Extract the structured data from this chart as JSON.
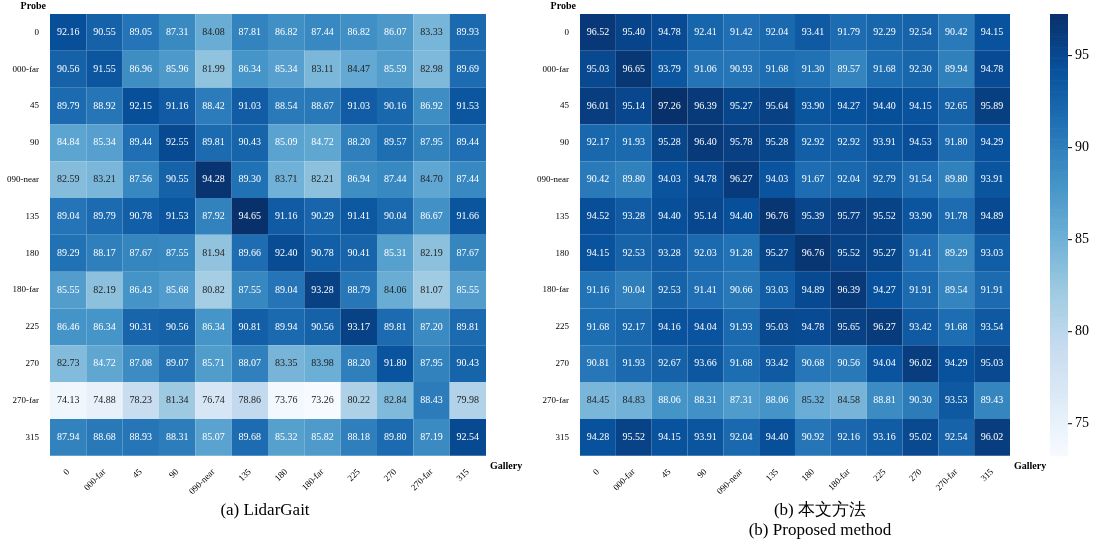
{
  "chart_data": [
    {
      "type": "heatmap",
      "title": "(a) LidarGait",
      "xlabel": "Gallery",
      "ylabel": "Probe",
      "data_labels": true,
      "categories": [
        "0",
        "000-far",
        "45",
        "90",
        "090-near",
        "135",
        "180",
        "180-far",
        "225",
        "270",
        "270-far",
        "315"
      ],
      "y_categories": [
        "0",
        "000-far",
        "45",
        "90",
        "090-near",
        "135",
        "180",
        "180-far",
        "225",
        "270",
        "270-far",
        "315"
      ],
      "cells": [
        [
          92.16,
          90.55,
          89.05,
          87.31,
          84.08,
          87.81,
          86.82,
          87.44,
          86.82,
          86.07,
          83.33,
          89.93
        ],
        [
          90.56,
          91.55,
          86.96,
          85.96,
          81.99,
          86.34,
          85.34,
          83.11,
          84.47,
          85.59,
          82.98,
          89.69
        ],
        [
          89.79,
          88.92,
          92.15,
          91.16,
          88.42,
          91.03,
          88.54,
          88.67,
          91.03,
          90.16,
          86.92,
          91.53
        ],
        [
          84.84,
          85.34,
          89.44,
          92.55,
          89.81,
          90.43,
          85.09,
          84.72,
          88.2,
          89.57,
          87.95,
          89.44
        ],
        [
          82.59,
          83.21,
          87.56,
          90.55,
          94.28,
          89.3,
          83.71,
          82.21,
          86.94,
          87.44,
          84.7,
          87.44
        ],
        [
          89.04,
          89.79,
          90.78,
          91.53,
          87.92,
          94.65,
          91.16,
          90.29,
          91.41,
          90.04,
          86.67,
          91.66
        ],
        [
          89.29,
          88.17,
          87.67,
          87.55,
          81.94,
          89.66,
          92.4,
          90.78,
          90.41,
          85.31,
          82.19,
          87.67
        ],
        [
          85.55,
          82.19,
          86.43,
          85.68,
          80.82,
          87.55,
          89.04,
          93.28,
          88.79,
          84.06,
          81.07,
          85.55
        ],
        [
          86.46,
          86.34,
          90.31,
          90.56,
          86.34,
          90.81,
          89.94,
          90.56,
          93.17,
          89.81,
          87.2,
          89.81
        ],
        [
          82.73,
          84.72,
          87.08,
          89.07,
          85.71,
          88.07,
          83.35,
          83.98,
          88.2,
          91.8,
          87.95,
          90.43
        ],
        [
          74.13,
          74.88,
          78.23,
          81.34,
          76.74,
          78.86,
          73.76,
          73.26,
          80.22,
          82.84,
          88.43,
          79.98
        ],
        [
          87.94,
          88.68,
          88.93,
          88.31,
          85.07,
          89.68,
          85.32,
          85.82,
          88.18,
          89.8,
          87.19,
          92.54
        ]
      ],
      "cell_labels": [
        [
          "92.16",
          "90.55",
          "89.05",
          "87.31",
          "84.08",
          "87.81",
          "86.82",
          "87.44",
          "86.82",
          "86.07",
          "83.33",
          "89.93"
        ],
        [
          "90.56",
          "91.55",
          "86.96",
          "85.96",
          "81.99",
          "86.34",
          "85.34",
          "83.11",
          "84.47",
          "85.59",
          "82.98",
          "89.69"
        ],
        [
          "89.79",
          "88.92",
          "92.15",
          "91.16",
          "88.42",
          "91.03",
          "88.54",
          "88.67",
          "91.03",
          "90.16",
          "86.92",
          "91.53"
        ],
        [
          "84.84",
          "85.34",
          "89.44",
          "92.55",
          "89.81",
          "90.43",
          "85.09",
          "84.72",
          "88.20",
          "89.57",
          "87.95",
          "89.44"
        ],
        [
          "82.59",
          "83.21",
          "87.56",
          "90.55",
          "94.28",
          "89.30",
          "83.71",
          "82.21",
          "86.94",
          "87.44",
          "84.70",
          "87.44"
        ],
        [
          "89.04",
          "89.79",
          "90.78",
          "91.53",
          "87.92",
          "94.65",
          "91.16",
          "90.29",
          "91.41",
          "90.04",
          "86.67",
          "91.66"
        ],
        [
          "89.29",
          "88.17",
          "87.67",
          "87.55",
          "81.94",
          "89.66",
          "92.40",
          "90.78",
          "90.41",
          "85.31",
          "82.19",
          "87.67"
        ],
        [
          "85.55",
          "82.19",
          "86.43",
          "85.68",
          "80.82",
          "87.55",
          "89.04",
          "93.28",
          "88.79",
          "84.06",
          "81.07",
          "85.55"
        ],
        [
          "86.46",
          "86.34",
          "90.31",
          "90.56",
          "86.34",
          "90.81",
          "89.94",
          "90.56",
          "93.17",
          "89.81",
          "87.20",
          "89.81"
        ],
        [
          "82.73",
          "84.72",
          "87.08",
          "89.07",
          "85.71",
          "88.07",
          "83.35",
          "83.98",
          "88.20",
          "91.80",
          "87.95",
          "90.43"
        ],
        [
          "74.13",
          "74.88",
          "78.23",
          "81.34",
          "76.74",
          "78.86",
          "73.76",
          "73.26",
          "80.22",
          "82.84",
          "88.43",
          "79.98"
        ],
        [
          "87.94",
          "88.68",
          "88.93",
          "88.31",
          "85.07",
          "89.68",
          "85.32",
          "85.82",
          "88.18",
          "89.80",
          "87.19",
          "92.54"
        ]
      ]
    },
    {
      "type": "heatmap",
      "title": "(b) 本文方法",
      "subtitle": "(b) Proposed method",
      "xlabel": "Gallery",
      "ylabel": "Probe",
      "data_labels": true,
      "categories": [
        "0",
        "000-far",
        "45",
        "90",
        "090-near",
        "135",
        "180",
        "180-far",
        "225",
        "270",
        "270-far",
        "315"
      ],
      "y_categories": [
        "0",
        "000-far",
        "45",
        "90",
        "090-near",
        "135",
        "180",
        "180-far",
        "225",
        "270",
        "270-far",
        "315"
      ],
      "clim": [
        73.26,
        97.26
      ],
      "cticks": [
        75,
        80,
        85,
        90,
        95
      ],
      "cells": [
        [
          96.52,
          95.4,
          94.78,
          92.41,
          91.42,
          92.04,
          93.41,
          91.79,
          92.29,
          92.54,
          90.42,
          94.15
        ],
        [
          95.03,
          96.65,
          93.79,
          91.06,
          90.93,
          91.68,
          91.3,
          89.57,
          91.68,
          92.3,
          89.94,
          94.78
        ],
        [
          96.01,
          95.14,
          97.26,
          96.39,
          95.27,
          95.64,
          93.9,
          94.27,
          94.4,
          94.15,
          92.65,
          95.89
        ],
        [
          92.17,
          91.93,
          95.28,
          96.4,
          95.78,
          95.28,
          92.92,
          92.92,
          93.91,
          94.53,
          91.8,
          94.29
        ],
        [
          90.42,
          89.8,
          94.03,
          94.78,
          96.27,
          94.03,
          91.67,
          92.04,
          92.79,
          91.54,
          89.8,
          93.91
        ],
        [
          94.52,
          93.28,
          94.4,
          95.14,
          94.4,
          96.76,
          95.39,
          95.77,
          95.52,
          93.9,
          91.78,
          94.89
        ],
        [
          94.15,
          92.53,
          93.28,
          92.03,
          91.28,
          95.27,
          96.76,
          95.52,
          95.27,
          91.41,
          89.29,
          93.03
        ],
        [
          91.16,
          90.04,
          92.53,
          91.41,
          90.66,
          93.03,
          94.89,
          96.39,
          94.27,
          91.91,
          89.54,
          91.91
        ],
        [
          91.68,
          92.17,
          94.16,
          94.04,
          91.93,
          95.03,
          94.78,
          95.65,
          96.27,
          93.42,
          91.68,
          93.54
        ],
        [
          90.81,
          91.93,
          92.67,
          93.66,
          91.68,
          93.42,
          90.68,
          90.56,
          94.04,
          96.02,
          94.29,
          95.03
        ],
        [
          84.45,
          84.83,
          88.06,
          88.31,
          87.31,
          88.06,
          85.32,
          84.58,
          88.81,
          90.3,
          93.53,
          89.43
        ],
        [
          94.28,
          95.52,
          94.15,
          93.91,
          92.04,
          94.4,
          90.92,
          92.16,
          93.16,
          95.02,
          92.54,
          96.02
        ]
      ],
      "cell_labels": [
        [
          "96.52",
          "95.40",
          "94.78",
          "92.41",
          "91.42",
          "92.04",
          "93.41",
          "91.79",
          "92.29",
          "92.54",
          "90.42",
          "94.15"
        ],
        [
          "95.03",
          "96.65",
          "93.79",
          "91.06",
          "90.93",
          "91.68",
          "91.30",
          "89.57",
          "91.68",
          "92.30",
          "89.94",
          "94.78"
        ],
        [
          "96.01",
          "95.14",
          "97.26",
          "96.39",
          "95.27",
          "95.64",
          "93.90",
          "94.27",
          "94.40",
          "94.15",
          "92.65",
          "95.89"
        ],
        [
          "92.17",
          "91.93",
          "95.28",
          "96.40",
          "95.78",
          "95.28",
          "92.92",
          "92.92",
          "93.91",
          "94.53",
          "91.80",
          "94.29"
        ],
        [
          "90.42",
          "89.80",
          "94.03",
          "94.78",
          "96.27",
          "94.03",
          "91.67",
          "92.04",
          "92.79",
          "91.54",
          "89.80",
          "93.91"
        ],
        [
          "94.52",
          "93.28",
          "94.40",
          "95.14",
          "94.40",
          "96.76",
          "95.39",
          "95.77",
          "95.52",
          "93.90",
          "91.78",
          "94.89"
        ],
        [
          "94.15",
          "92.53",
          "93.28",
          "92.03",
          "91.28",
          "95.27",
          "96.76",
          "95.52",
          "95.27",
          "91.41",
          "89.29",
          "93.03"
        ],
        [
          "91.16",
          "90.04",
          "92.53",
          "91.41",
          "90.66",
          "93.03",
          "94.89",
          "96.39",
          "94.27",
          "91.91",
          "89.54",
          "91.91"
        ],
        [
          "91.68",
          "92.17",
          "94.16",
          "94.04",
          "91.93",
          "95.03",
          "94.78",
          "95.65",
          "96.27",
          "93.42",
          "91.68",
          "93.54"
        ],
        [
          "90.81",
          "91.93",
          "92.67",
          "93.66",
          "91.68",
          "93.42",
          "90.68",
          "90.56",
          "94.04",
          "96.02",
          "94.29",
          "95.03"
        ],
        [
          "84.45",
          "84.83",
          "88.06",
          "88.31",
          "87.31",
          "88.06",
          "85.32",
          "84.58",
          "88.81",
          "90.30",
          "93.53",
          "89.43"
        ],
        [
          "94.28",
          "95.52",
          "94.15",
          "93.91",
          "92.04",
          "94.40",
          "90.92",
          "92.16",
          "93.16",
          "95.02",
          "92.54",
          "96.02"
        ]
      ]
    }
  ]
}
